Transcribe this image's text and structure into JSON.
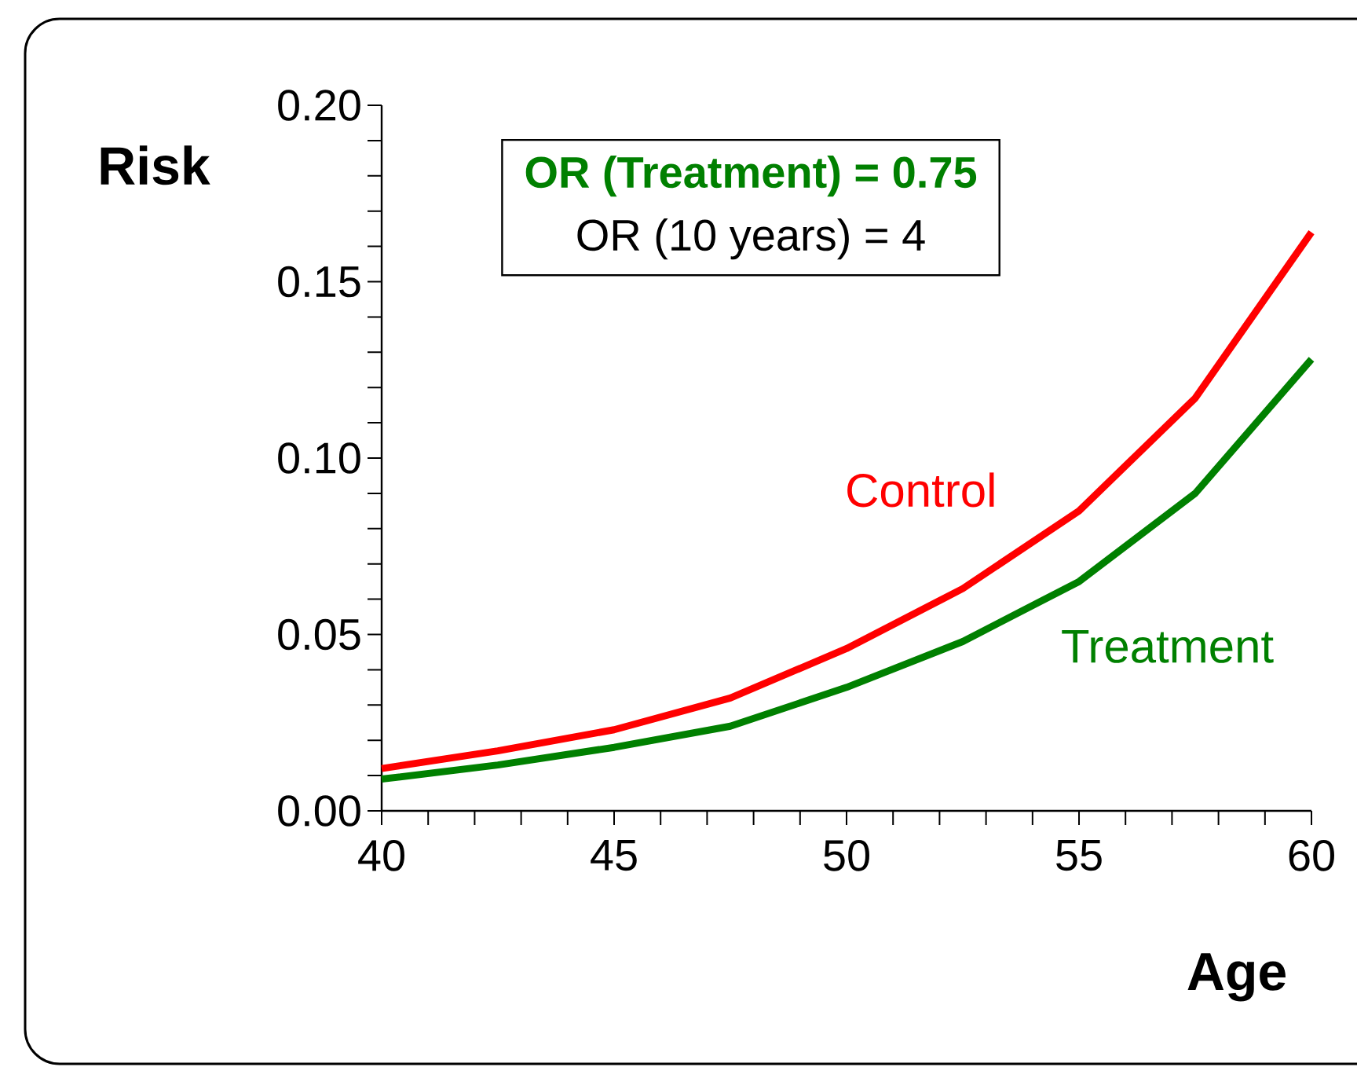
{
  "chart_data": {
    "type": "line",
    "xlabel": "Age",
    "ylabel": "Risk",
    "x": [
      40,
      42.5,
      45,
      47.5,
      50,
      52.5,
      55,
      57.5,
      60
    ],
    "series": [
      {
        "name": "Control",
        "color": "#ff0000",
        "values": [
          0.012,
          0.017,
          0.023,
          0.032,
          0.046,
          0.063,
          0.085,
          0.117,
          0.164
        ]
      },
      {
        "name": "Treatment",
        "color": "#008000",
        "values": [
          0.009,
          0.013,
          0.018,
          0.024,
          0.035,
          0.048,
          0.065,
          0.09,
          0.128
        ]
      }
    ],
    "annotations": [
      "OR (Treatment) = 0.75",
      "OR (10 years) = 4"
    ],
    "xlim": [
      40,
      60
    ],
    "ylim": [
      0,
      0.2
    ],
    "xticks": [
      40,
      {
        "value": 41,
        "label": null
      },
      {
        "value": 42,
        "label": null
      },
      {
        "value": 43,
        "label": null
      },
      {
        "value": 44,
        "label": null
      },
      45,
      {
        "value": 46,
        "label": null
      },
      {
        "value": 47,
        "label": null
      },
      {
        "value": 48,
        "label": null
      },
      {
        "value": 49,
        "label": null
      },
      50,
      {
        "value": 51,
        "label": null
      },
      {
        "value": 52,
        "label": null
      },
      {
        "value": 53,
        "label": null
      },
      {
        "value": 54,
        "label": null
      },
      55,
      {
        "value": 56,
        "label": null
      },
      {
        "value": 57,
        "label": null
      },
      {
        "value": 58,
        "label": null
      },
      {
        "value": 59,
        "label": null
      },
      60
    ],
    "yticks": [
      {
        "value": 0,
        "label": "0.00"
      },
      {
        "value": 0.01,
        "label": null
      },
      {
        "value": 0.02,
        "label": null
      },
      {
        "value": 0.03,
        "label": null
      },
      {
        "value": 0.04,
        "label": null
      },
      {
        "value": 0.05,
        "label": "0.05"
      },
      {
        "value": 0.06,
        "label": null
      },
      {
        "value": 0.07,
        "label": null
      },
      {
        "value": 0.08,
        "label": null
      },
      {
        "value": 0.09,
        "label": null
      },
      {
        "value": 0.1,
        "label": "0.10"
      },
      {
        "value": 0.11,
        "label": null
      },
      {
        "value": 0.12,
        "label": null
      },
      {
        "value": 0.13,
        "label": null
      },
      {
        "value": 0.14,
        "label": null
      },
      {
        "value": 0.15,
        "label": "0.15"
      },
      {
        "value": 0.16,
        "label": null
      },
      {
        "value": 0.17,
        "label": null
      },
      {
        "value": 0.18,
        "label": null
      },
      {
        "value": 0.19,
        "label": null
      },
      {
        "value": 0.2,
        "label": "0.20"
      }
    ],
    "grid": false,
    "legend": false,
    "marker": "none",
    "line_style": "solid"
  }
}
